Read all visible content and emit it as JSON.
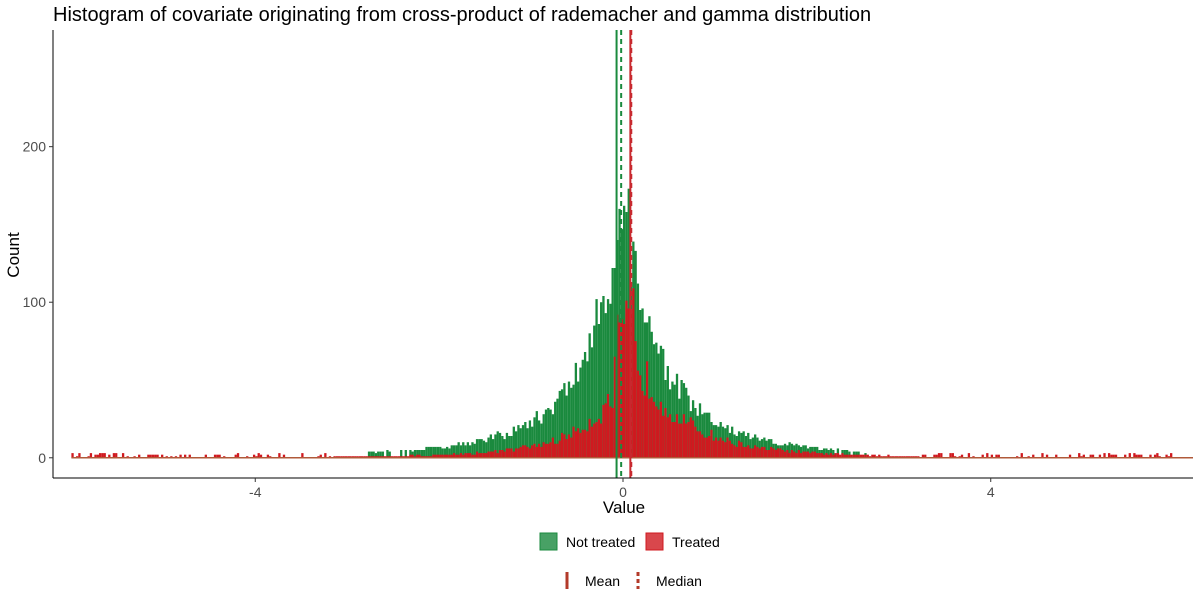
{
  "chart_data": {
    "type": "bar",
    "title": "Histogram of covariate originating from cross-product of rademacher and gamma distribution",
    "xlabel": "Value",
    "ylabel": "Count",
    "xlim": [
      -6.2,
      6.2
    ],
    "ylim": [
      -13,
      275
    ],
    "xticks": [
      "-4",
      "0",
      "4"
    ],
    "yticks": [
      "0",
      "100",
      "200"
    ],
    "grid": false,
    "legend_position": "bottom",
    "series": [
      {
        "name": "Not treated",
        "color": "#1a8a3e",
        "mean": -0.07,
        "median": -0.02
      },
      {
        "name": "Treated",
        "color": "#d0191f",
        "mean": 0.08,
        "median": 0.09
      }
    ],
    "line_legend": [
      {
        "name": "Mean",
        "style": "solid"
      },
      {
        "name": "Median",
        "style": "dashed"
      }
    ],
    "vline_color_not_treated": "#1a8a3e",
    "vline_color_treated": "#c8282e"
  }
}
